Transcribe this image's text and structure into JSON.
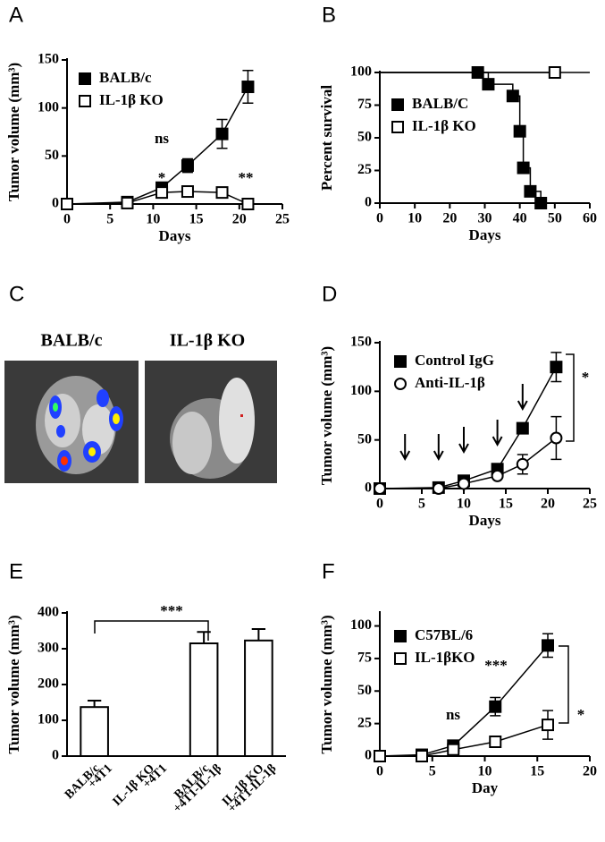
{
  "panel_labels": [
    "A",
    "B",
    "C",
    "D",
    "E",
    "F"
  ],
  "image_panel": {
    "labels": [
      "BALB/c",
      "IL-1β KO"
    ]
  },
  "chart_data": [
    {
      "type": "line",
      "y_label": "Tumor volume (mm³)",
      "x_label": "Days",
      "xlim": [
        0,
        25
      ],
      "xticks": [
        0,
        5,
        10,
        15,
        20,
        25
      ],
      "ylim": [
        0,
        150
      ],
      "yticks": [
        0,
        50,
        100,
        150
      ],
      "series": [
        {
          "name": "BALB/c",
          "color": "#000000",
          "marker": "square",
          "fill": "#000000",
          "x": [
            0,
            7,
            11,
            14,
            18,
            21
          ],
          "values": [
            0,
            2,
            17,
            40,
            73,
            122
          ],
          "errors": [
            0,
            1,
            3,
            7,
            15,
            17
          ]
        },
        {
          "name": "IL-1β KO",
          "color": "#000000",
          "marker": "square",
          "fill": "#ffffff",
          "x": [
            0,
            7,
            11,
            14,
            18,
            21
          ],
          "values": [
            0,
            1,
            12,
            13,
            12,
            0
          ],
          "errors": [
            0,
            1,
            2,
            3,
            3,
            0
          ]
        }
      ],
      "annotations": [
        "ns",
        "*",
        "**"
      ]
    },
    {
      "type": "survival",
      "y_label": "Percent survival",
      "x_label": "Days",
      "xlim": [
        0,
        60
      ],
      "xticks": [
        0,
        10,
        20,
        30,
        40,
        50,
        60
      ],
      "ylim": [
        0,
        100
      ],
      "yticks": [
        0,
        25,
        50,
        75,
        100
      ],
      "series": [
        {
          "name": "BALB/C",
          "color": "#000000",
          "marker": "square",
          "fill": "#000000",
          "x": [
            28,
            31,
            38,
            40,
            41,
            43,
            46
          ],
          "values": [
            100,
            91,
            82,
            55,
            27,
            9,
            0
          ]
        },
        {
          "name": "IL-1β KO",
          "color": "#000000",
          "marker": "square",
          "fill": "#ffffff",
          "x": [
            50
          ],
          "values": [
            100
          ]
        }
      ]
    },
    {
      "type": "line",
      "y_label": "Tumor volume (mm³)",
      "x_label": "Days",
      "xlim": [
        0,
        25
      ],
      "xticks": [
        0,
        5,
        10,
        15,
        20,
        25
      ],
      "ylim": [
        0,
        150
      ],
      "yticks": [
        0,
        50,
        100,
        150
      ],
      "series": [
        {
          "name": "Control IgG",
          "color": "#000000",
          "marker": "square",
          "fill": "#000000",
          "x": [
            0,
            7,
            10,
            14,
            17,
            21
          ],
          "values": [
            0,
            1,
            8,
            20,
            62,
            125
          ],
          "errors": [
            0,
            1,
            2,
            3,
            5,
            15
          ]
        },
        {
          "name": "Anti-IL-1β",
          "color": "#000000",
          "marker": "circle",
          "fill": "#ffffff",
          "x": [
            0,
            7,
            10,
            14,
            17,
            21
          ],
          "values": [
            0,
            0,
            5,
            13,
            25,
            52
          ],
          "errors": [
            0,
            1,
            2,
            2,
            10,
            22
          ]
        }
      ],
      "arrows_x": [
        3,
        7,
        10,
        14,
        17
      ],
      "annotations": [
        "*"
      ]
    },
    {
      "type": "bar",
      "y_label": "Tumor volume (mm³)",
      "ylim": [
        0,
        400
      ],
      "yticks": [
        0,
        100,
        200,
        300,
        400
      ],
      "color": "#ffffff",
      "categories": [
        [
          "BALB/c",
          "+4T1"
        ],
        [
          "IL-1β KO",
          "+4T1"
        ],
        [
          "BALB/c",
          "+4T1-IL-1β"
        ],
        [
          "IL-1β KO",
          "+4T1-IL-1β"
        ]
      ],
      "values": [
        137,
        0,
        315,
        323
      ],
      "errors": [
        18,
        0,
        32,
        32
      ],
      "annotations": [
        "***"
      ]
    },
    {
      "type": "line",
      "y_label": "Tumor volume (mm³)",
      "x_label": "Day",
      "xlim": [
        0,
        20
      ],
      "xticks": [
        0,
        5,
        10,
        15,
        20
      ],
      "ylim": [
        0,
        110
      ],
      "yticks": [
        0,
        25,
        50,
        75,
        100
      ],
      "series": [
        {
          "name": "C57BL/6",
          "color": "#000000",
          "marker": "square",
          "fill": "#000000",
          "x": [
            0,
            4,
            7,
            11,
            16
          ],
          "values": [
            0,
            1,
            8,
            38,
            85
          ],
          "errors": [
            0,
            1,
            3,
            7,
            9
          ]
        },
        {
          "name": "IL-1βKO",
          "color": "#000000",
          "marker": "square",
          "fill": "#ffffff",
          "x": [
            0,
            4,
            7,
            11,
            16
          ],
          "values": [
            0,
            0,
            5,
            11,
            24
          ],
          "errors": [
            0,
            0,
            2,
            2,
            11
          ]
        }
      ],
      "annotations": [
        "ns",
        "***",
        "*"
      ]
    }
  ]
}
